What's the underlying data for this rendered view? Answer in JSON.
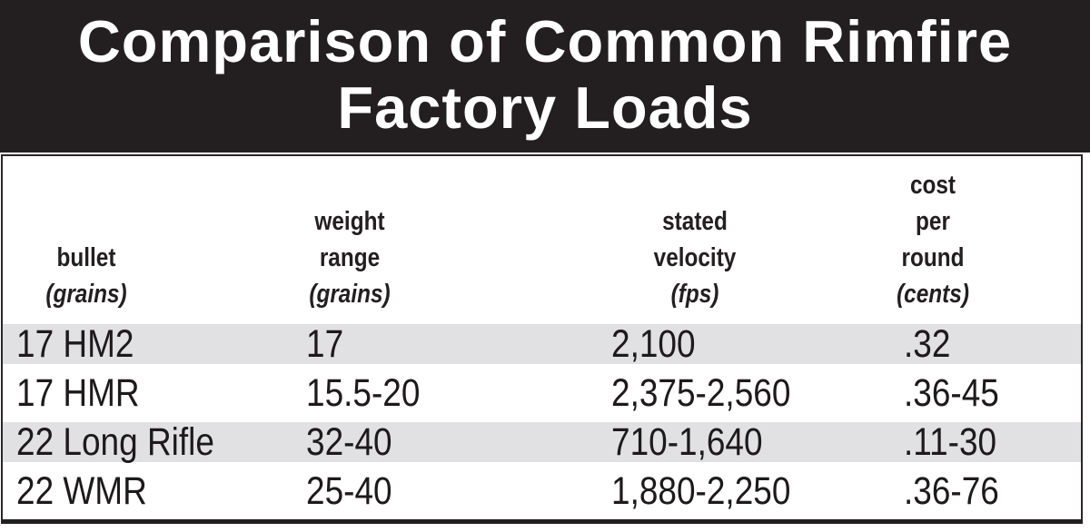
{
  "title": {
    "line1": "Comparison of Common Rimfire",
    "line2": "Factory Loads"
  },
  "table": {
    "columns": [
      {
        "line1": "bullet",
        "unit": "(grains)"
      },
      {
        "line1": "weight",
        "line2": "range",
        "unit": "(grains)"
      },
      {
        "line1": "stated",
        "line2": "velocity",
        "unit": "(fps)"
      },
      {
        "line1": "cost",
        "line2": "per",
        "line3": "round",
        "unit": "(cents)"
      }
    ],
    "rows": [
      {
        "bullet": "17 HM2",
        "weight": "17",
        "velocity": "2,100",
        "cost": ".32"
      },
      {
        "bullet": "17 HMR",
        "weight": "15.5-20",
        "velocity": "2,375-2,560",
        "cost": ".36-45"
      },
      {
        "bullet": "22 Long Rifle",
        "weight": "32-40",
        "velocity": "710-1,640",
        "cost": ".11-30"
      },
      {
        "bullet": "22 WMR",
        "weight": "25-40",
        "velocity": "1,880-2,250",
        "cost": ".36-76"
      }
    ]
  },
  "colors": {
    "banner_background": "#231f20",
    "banner_text": "#ffffff",
    "row_stripe": "#e1e1e3",
    "table_border": "#2a2627",
    "body_text": "#1d1a1b"
  },
  "chart_data": {
    "type": "table",
    "title": "Comparison of Common Rimfire Factory Loads",
    "columns": [
      "bullet (grains)",
      "weight range (grains)",
      "stated velocity (fps)",
      "cost per round (cents)"
    ],
    "rows": [
      [
        "17 HM2",
        "17",
        "2,100",
        ".32"
      ],
      [
        "17 HMR",
        "15.5-20",
        "2,375-2,560",
        ".36-45"
      ],
      [
        "22 Long Rifle",
        "32-40",
        "710-1,640",
        ".11-30"
      ],
      [
        "22 WMR",
        "25-40",
        "1,880-2,250",
        ".36-76"
      ]
    ],
    "layout": {
      "shaded_row_indices": [
        0,
        2
      ],
      "header_alignment": "center",
      "cell_alignment": "left"
    }
  }
}
